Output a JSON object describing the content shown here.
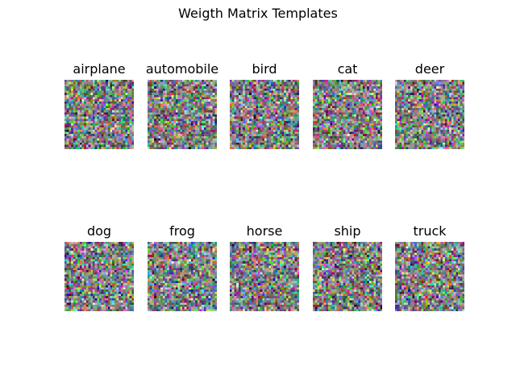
{
  "figure": {
    "title": "Weigth Matrix Templates",
    "grid": {
      "rows": 2,
      "cols": 5
    },
    "template_resolution": 32,
    "panels": [
      {
        "label": "airplane"
      },
      {
        "label": "automobile"
      },
      {
        "label": "bird"
      },
      {
        "label": "cat"
      },
      {
        "label": "deer"
      },
      {
        "label": "dog"
      },
      {
        "label": "frog"
      },
      {
        "label": "horse"
      },
      {
        "label": "ship"
      },
      {
        "label": "truck"
      }
    ]
  }
}
